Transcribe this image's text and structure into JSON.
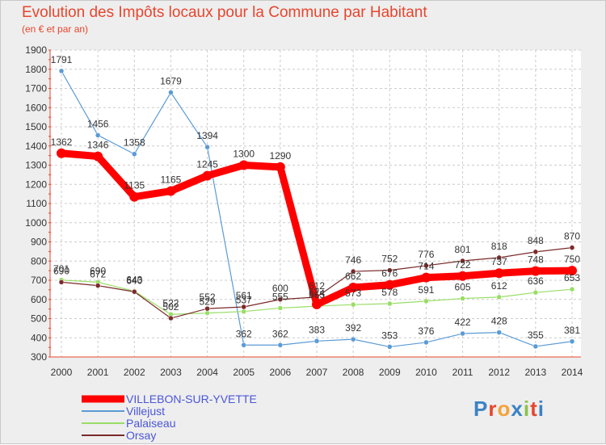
{
  "chart_data": {
    "type": "line",
    "title": "Evolution des Impôts locaux pour la Commune par Habitant",
    "subtitle": "(en € et par an)",
    "x": [
      "2000",
      "2001",
      "2002",
      "2003",
      "2004",
      "2005",
      "2006",
      "2007",
      "2008",
      "2009",
      "2010",
      "2011",
      "2012",
      "2013",
      "2014"
    ],
    "ylim": [
      300,
      1900
    ],
    "yticks": [
      300,
      400,
      500,
      600,
      700,
      800,
      900,
      1000,
      1100,
      1200,
      1300,
      1400,
      1500,
      1600,
      1700,
      1800,
      1900
    ],
    "grid": true,
    "legend_position": "bottom-left",
    "series": [
      {
        "name": "VILLEBON-SUR-YVETTE",
        "color": "#ff0000",
        "values": [
          1362,
          1346,
          1135,
          1165,
          1245,
          1300,
          1290,
          574,
          662,
          676,
          714,
          722,
          737,
          748,
          750
        ]
      },
      {
        "name": "Villejust",
        "color": "#5b9bd5",
        "values": [
          1791,
          1456,
          1358,
          1679,
          1394,
          362,
          362,
          383,
          392,
          353,
          376,
          422,
          428,
          355,
          381
        ]
      },
      {
        "name": "Palaiseau",
        "color": "#99dd66",
        "values": [
          701,
          690,
          643,
          522,
          529,
          537,
          555,
          565,
          573,
          578,
          591,
          605,
          612,
          636,
          653
        ]
      },
      {
        "name": "Orsay",
        "color": "#7b2a2a",
        "values": [
          690,
          672,
          640,
          502,
          552,
          561,
          600,
          612,
          746,
          752,
          776,
          801,
          818,
          848,
          870
        ]
      }
    ]
  },
  "logo": {
    "text": "Proxiti",
    "letters": [
      "P",
      "r",
      "o",
      "x",
      "i",
      "t",
      "i"
    ],
    "colors": [
      "#3b82c4",
      "#e8452d",
      "#f2a33a",
      "#3b82c4",
      "#8bc34a",
      "#e8452d",
      "#3b82c4"
    ]
  }
}
